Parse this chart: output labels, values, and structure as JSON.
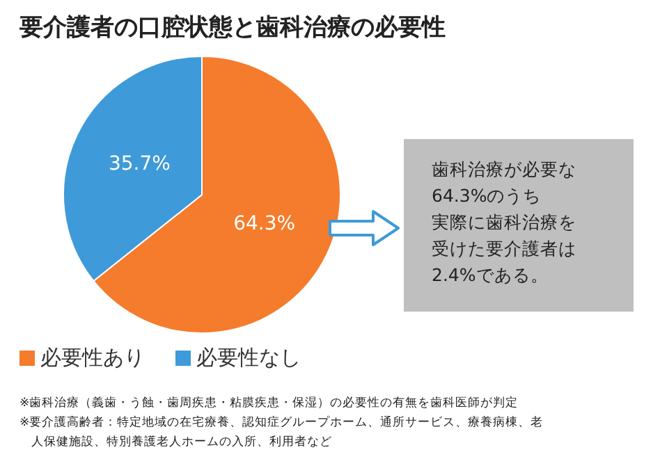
{
  "chart_data": {
    "type": "pie",
    "title": "要介護者の口腔状態と歯科治療の必要性",
    "categories": [
      "必要性あり",
      "必要性なし"
    ],
    "values": [
      64.3,
      35.7
    ],
    "colors": [
      "#f47c2c",
      "#3e9ad8"
    ],
    "value_labels": [
      "64.3%",
      "35.7%"
    ],
    "legend": "bottom",
    "annotations": [
      "歯科治療が必要な",
      "64.3%のうち",
      "実際に歯科治療を",
      "受けた要介護者は",
      "2.4%である。",
      "※歯科治療（義歯・う蝕・歯周疾患・粘膜疾患・保湿）の必要性の有無を歯科医師が判定",
      "※要介護高齢者：特定地域の在宅療養、認知症グループホーム、通所サービス、療養病棟、老人保健施設、特別養護老人ホームの入所、利用者など"
    ]
  }
}
